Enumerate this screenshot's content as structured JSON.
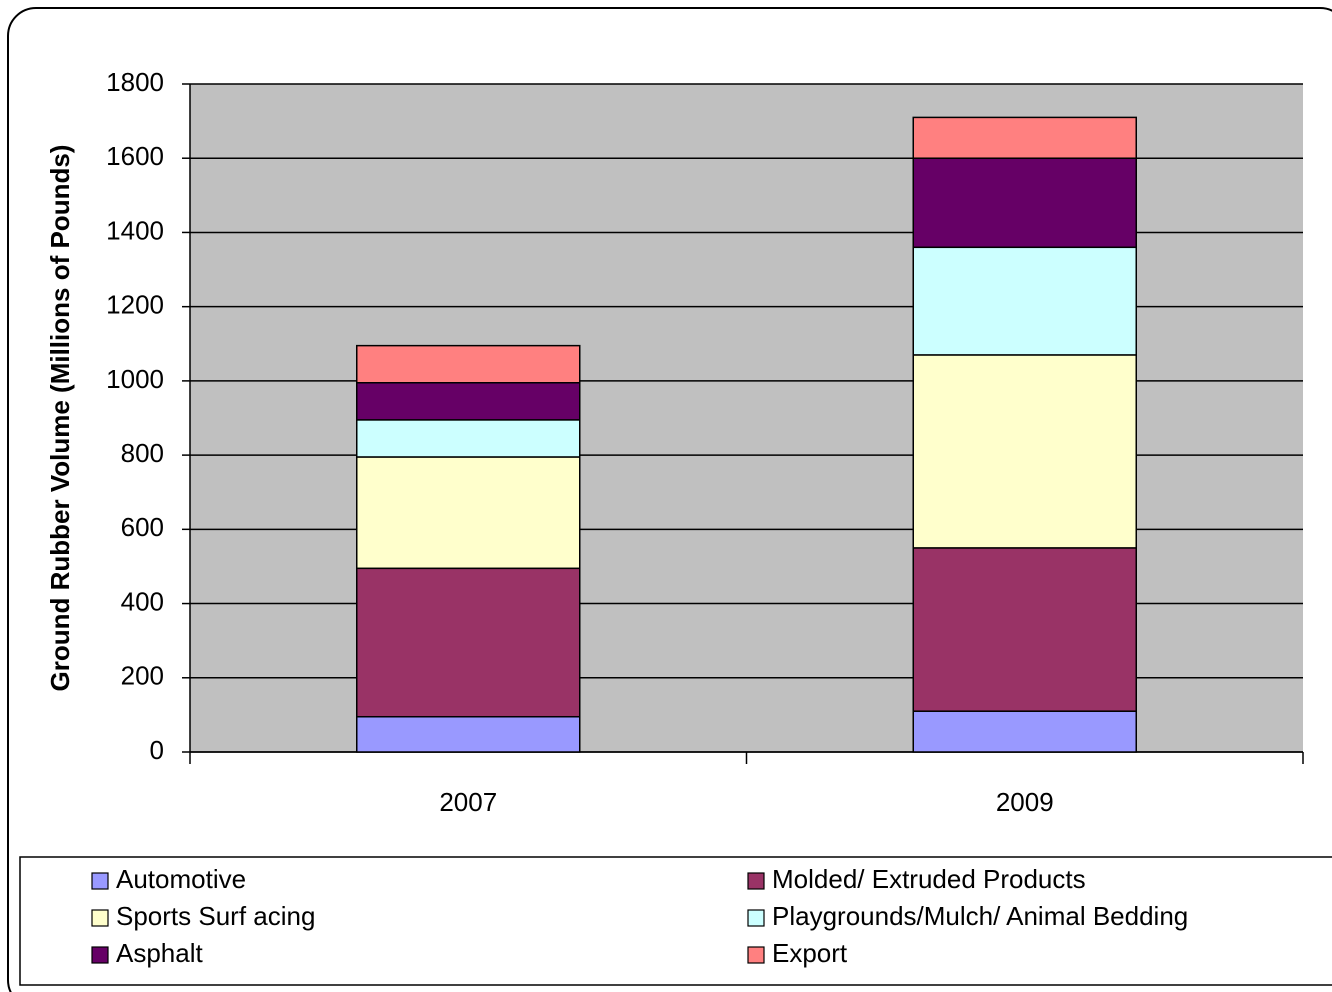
{
  "chart_data": {
    "type": "bar",
    "stacked": true,
    "y_label": "Ground Rubber Volume (Millions of Pounds)",
    "categories": [
      "2007",
      "2009"
    ],
    "series": [
      {
        "name": "Automotive",
        "color": "#9999ff",
        "values": [
          95,
          110
        ]
      },
      {
        "name": "Molded/ Extruded Products",
        "color": "#993366",
        "values": [
          400,
          440
        ]
      },
      {
        "name": "Sports Surf acing",
        "color": "#ffffcc",
        "values": [
          300,
          520
        ]
      },
      {
        "name": "Playgrounds/Mulch/ Animal Bedding",
        "color": "#ccffff",
        "values": [
          100,
          290
        ]
      },
      {
        "name": "Asphalt",
        "color": "#660066",
        "values": [
          100,
          240
        ]
      },
      {
        "name": "Export",
        "color": "#ff8080",
        "values": [
          100,
          110
        ]
      }
    ],
    "ylim": [
      0,
      1800
    ],
    "yticks": [
      0,
      200,
      400,
      600,
      800,
      1000,
      1200,
      1400,
      1600,
      1800
    ],
    "grid": true,
    "legend": "bottom"
  }
}
